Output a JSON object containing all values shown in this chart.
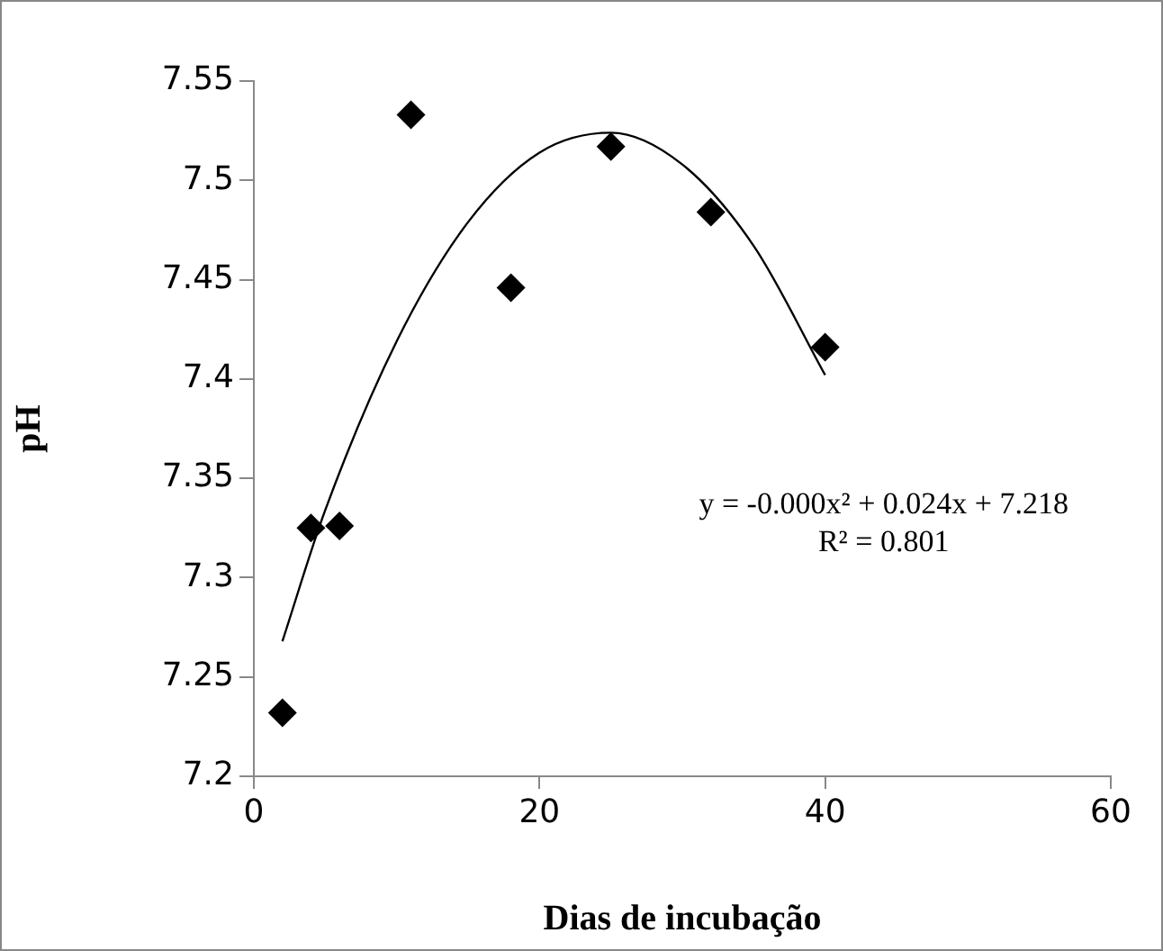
{
  "chart_data": {
    "type": "scatter",
    "xlabel": "Dias de incubação",
    "ylabel": "pH",
    "xlim": [
      0,
      60
    ],
    "xticks": [
      0,
      20,
      40,
      60
    ],
    "ylim": [
      7.2,
      7.55
    ],
    "yticks": [
      7.2,
      7.25,
      7.3,
      7.35,
      7.4,
      7.45,
      7.5,
      7.55
    ],
    "grid": false,
    "legend": false,
    "marker": "diamond",
    "annotations": [
      "y = -0.000x² + 0.024x + 7.218",
      "R² = 0.801"
    ],
    "series": [
      {
        "color": "#000000",
        "x": [
          2,
          4,
          6,
          11,
          18,
          25,
          32,
          40
        ],
        "values": [
          7.232,
          7.325,
          7.326,
          7.533,
          7.446,
          7.517,
          7.484,
          7.416
        ]
      },
      {
        "type": "line",
        "marker": "none",
        "color": "#000000",
        "x": [
          2,
          5,
          10,
          15,
          20,
          25,
          30,
          35,
          40
        ],
        "values": [
          7.268,
          7.334,
          7.419,
          7.479,
          7.514,
          7.524,
          7.508,
          7.467,
          7.402
        ]
      }
    ]
  }
}
